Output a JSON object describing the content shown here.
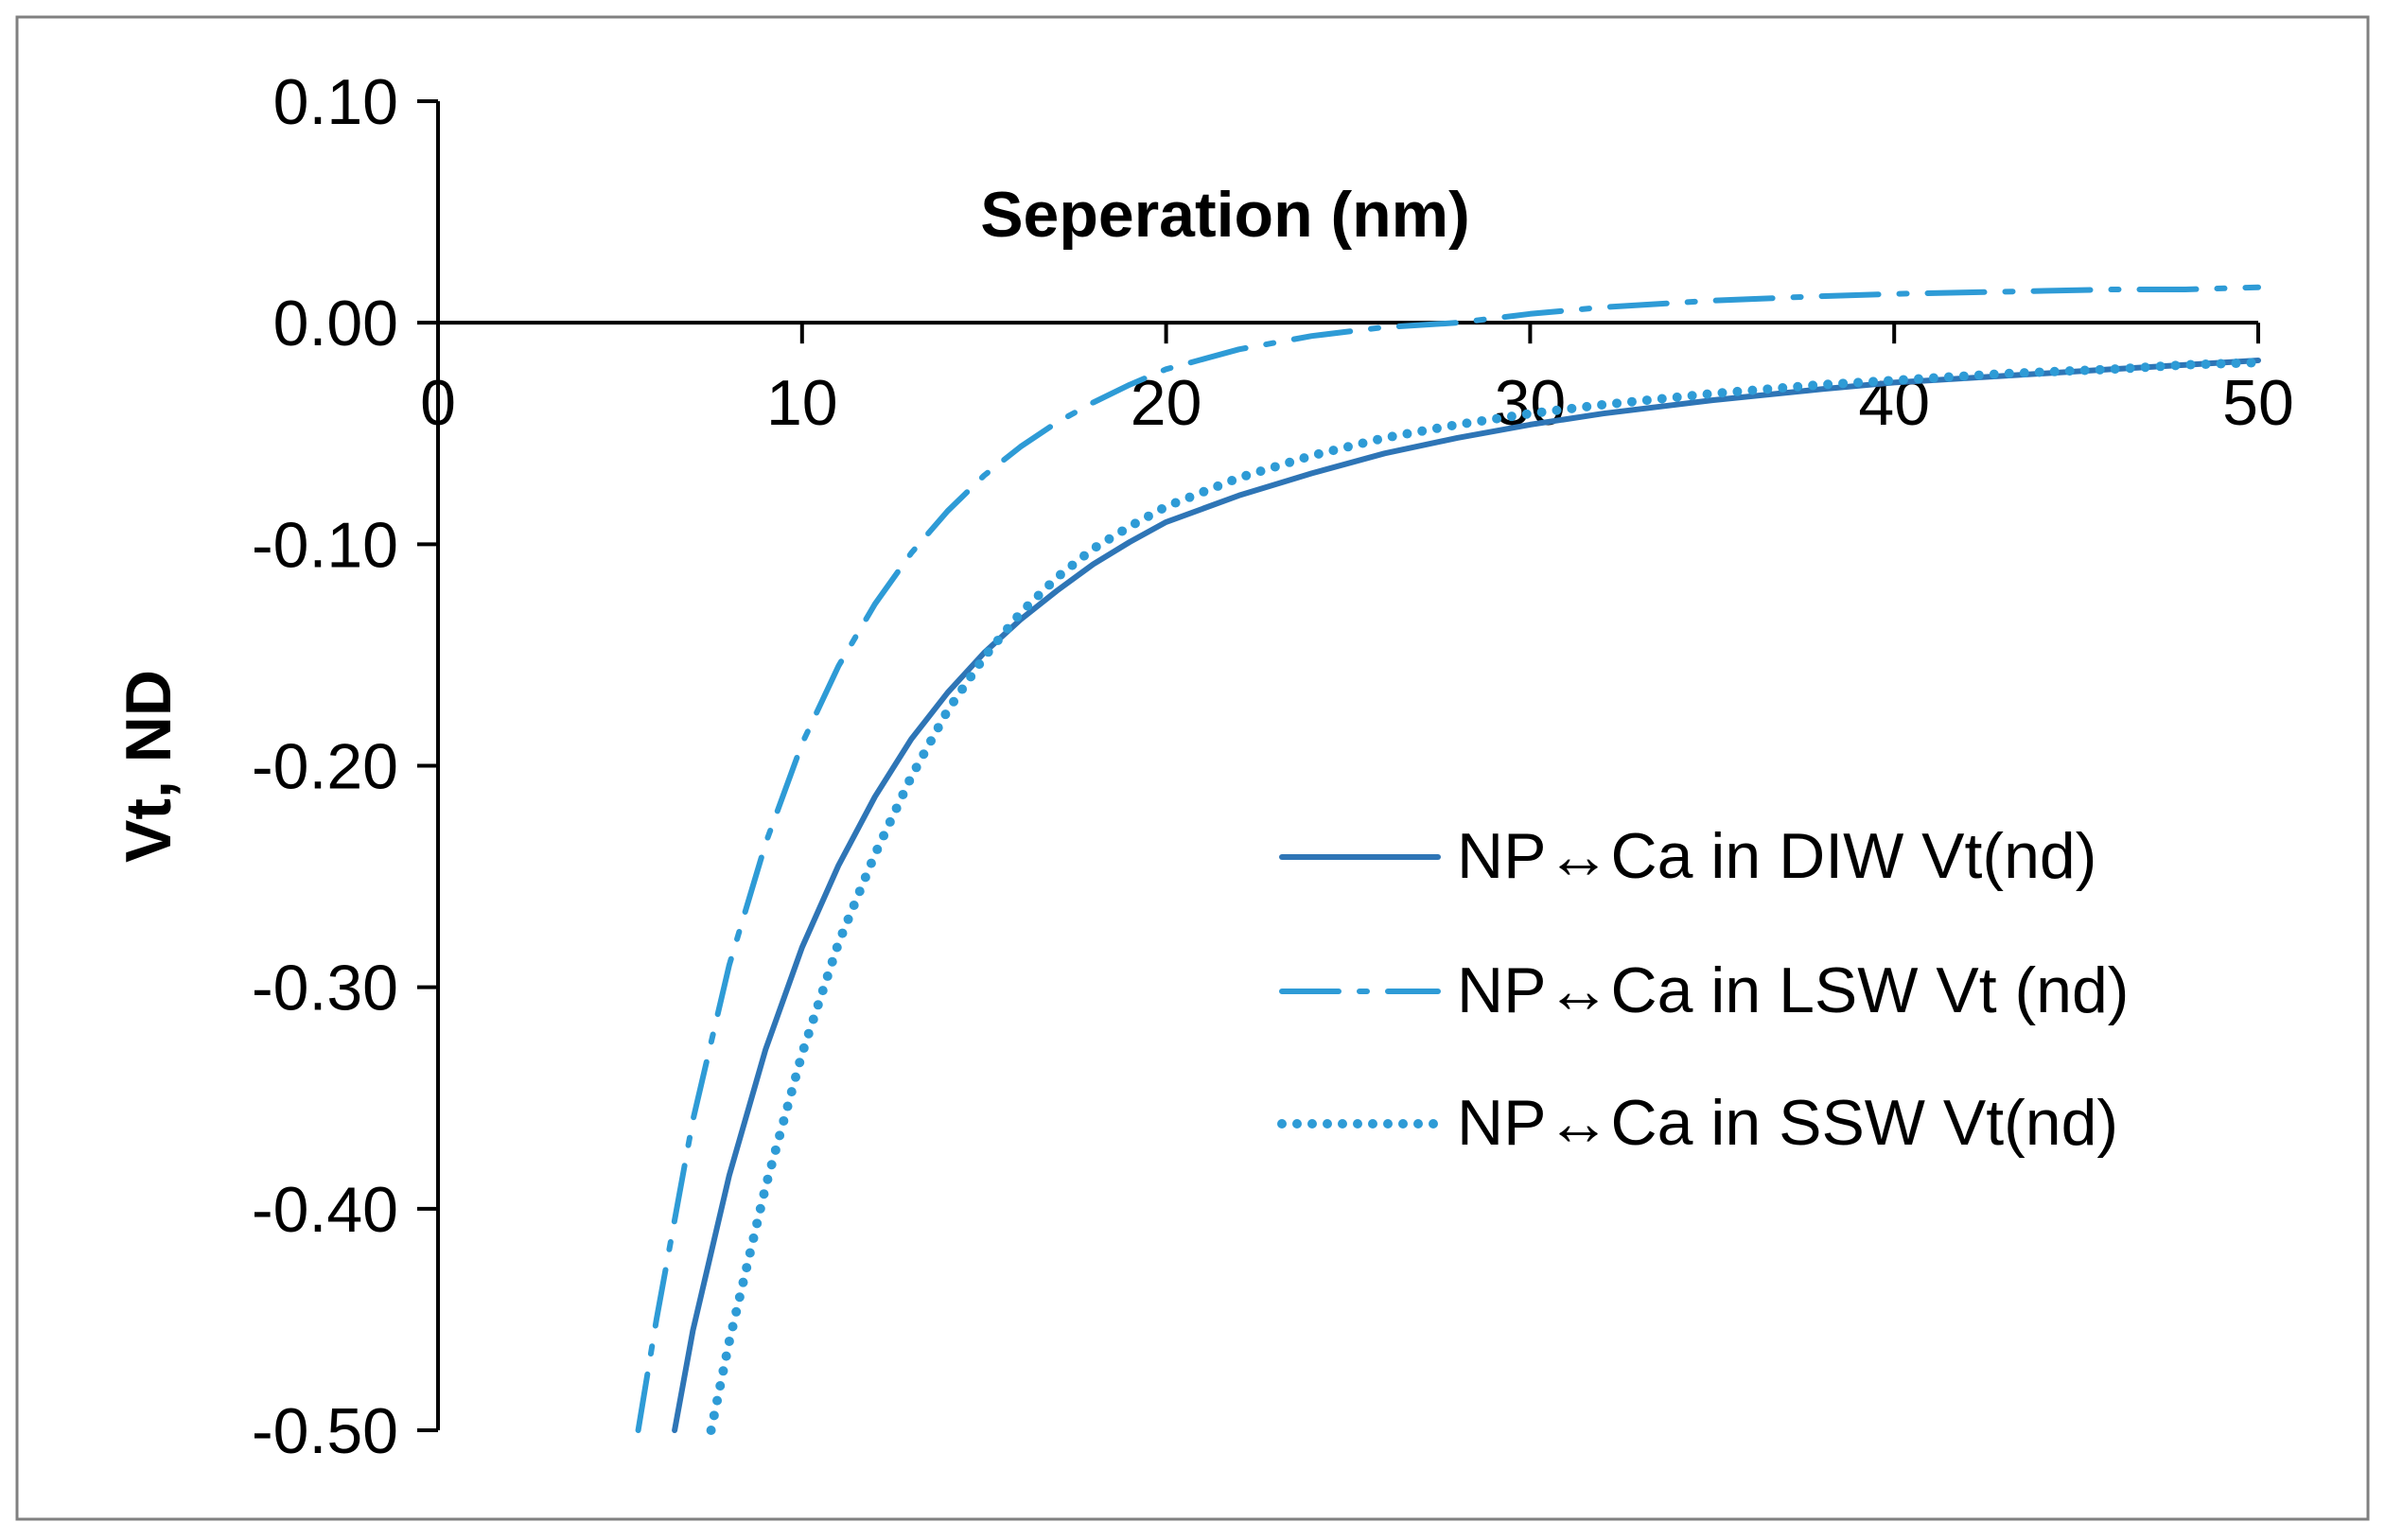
{
  "chart_data": {
    "type": "line",
    "title": "",
    "xlabel": "Seperation (nm)",
    "ylabel": "Vt, ND",
    "xlim": [
      0,
      50
    ],
    "ylim": [
      -0.5,
      0.1
    ],
    "x_ticks": [
      0,
      10,
      20,
      30,
      40,
      50
    ],
    "x_tick_labels": [
      "0",
      "10",
      "20",
      "30",
      "40",
      "50"
    ],
    "y_ticks": [
      0.1,
      0.0,
      -0.1,
      -0.2,
      -0.3,
      -0.4,
      -0.5
    ],
    "y_tick_labels": [
      "0.10",
      "0.00",
      "-0.10",
      "-0.20",
      "-0.30",
      "-0.40",
      "-0.50"
    ],
    "grid": false,
    "legend_position": "right",
    "series": [
      {
        "name": "NP↔Ca  in DIW  Vt(nd)",
        "style": "solid",
        "color": "#2E75B6",
        "x": [
          6.5,
          7,
          8,
          9,
          10,
          11,
          12,
          13,
          14,
          15,
          16,
          17,
          18,
          19,
          20,
          22,
          24,
          26,
          28,
          30,
          32,
          35,
          38,
          40,
          43,
          46,
          48,
          50
        ],
        "y": [
          -0.5,
          -0.455,
          -0.385,
          -0.328,
          -0.282,
          -0.245,
          -0.214,
          -0.188,
          -0.167,
          -0.149,
          -0.134,
          -0.121,
          -0.109,
          -0.099,
          -0.09,
          -0.078,
          -0.068,
          -0.059,
          -0.052,
          -0.046,
          -0.041,
          -0.035,
          -0.03,
          -0.027,
          -0.024,
          -0.021,
          -0.019,
          -0.017
        ]
      },
      {
        "name": "NP↔Ca  in LSW Vt (nd)",
        "style": "dash-dot",
        "color": "#2E9BD6",
        "x": [
          5.5,
          6,
          7,
          8,
          9,
          10,
          11,
          12,
          13,
          14,
          15,
          16,
          17,
          18,
          19,
          20,
          22,
          24,
          26,
          28,
          30,
          32,
          35,
          38,
          40,
          43,
          46,
          48,
          50
        ],
        "y": [
          -0.5,
          -0.45,
          -0.36,
          -0.29,
          -0.235,
          -0.19,
          -0.155,
          -0.127,
          -0.104,
          -0.085,
          -0.069,
          -0.056,
          -0.045,
          -0.036,
          -0.028,
          -0.021,
          -0.012,
          -0.006,
          -0.002,
          0.0,
          0.004,
          0.007,
          0.01,
          0.012,
          0.013,
          0.014,
          0.015,
          0.015,
          0.016
        ]
      },
      {
        "name": "NP↔Ca  in SSW Vt(nd)",
        "style": "dotted",
        "color": "#2E9BD6",
        "x": [
          7.5,
          8,
          9,
          10,
          11,
          12,
          13,
          14,
          15,
          16,
          17,
          18,
          19,
          20,
          22,
          24,
          26,
          28,
          30,
          32,
          35,
          38,
          40,
          43,
          46,
          48,
          50
        ],
        "y": [
          -0.5,
          -0.46,
          -0.39,
          -0.33,
          -0.28,
          -0.24,
          -0.205,
          -0.175,
          -0.151,
          -0.131,
          -0.115,
          -0.102,
          -0.092,
          -0.083,
          -0.07,
          -0.06,
          -0.052,
          -0.046,
          -0.041,
          -0.037,
          -0.032,
          -0.028,
          -0.026,
          -0.023,
          -0.021,
          -0.019,
          -0.018
        ]
      }
    ]
  }
}
